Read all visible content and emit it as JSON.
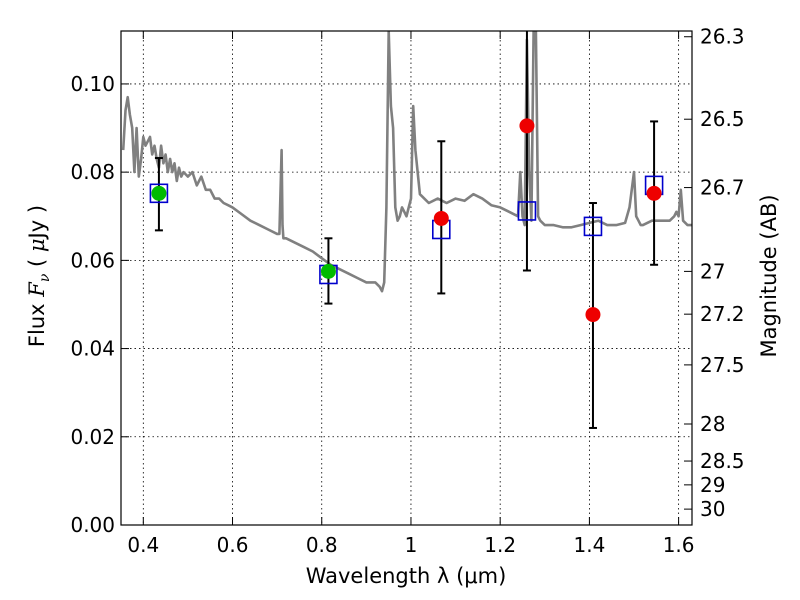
{
  "chart_data": {
    "type": "scatter",
    "xlabel": "Wavelength  λ (μm)",
    "ylabel_left_parts": [
      "Flux  ",
      "F",
      "ν",
      "  (  ",
      "μ",
      "Jy  )"
    ],
    "ylabel_right": "Magnitude (AB)",
    "xlim": [
      0.35,
      1.63
    ],
    "ylim": [
      0.0,
      0.112
    ],
    "x_ticks": [
      0.4,
      0.6,
      0.8,
      1.0,
      1.2,
      1.4,
      1.6
    ],
    "x_tick_labels": [
      "0.4",
      "0.6",
      "0.8",
      "1",
      "1.2",
      "1.4",
      "1.6"
    ],
    "y_ticks": [
      0.0,
      0.02,
      0.04,
      0.06,
      0.08,
      0.1
    ],
    "y_tick_labels": [
      "0.00",
      "0.02",
      "0.04",
      "0.06",
      "0.08",
      "0.10"
    ],
    "right_axis_ticks": [
      {
        "label": "26.3",
        "flux": 0.1107
      },
      {
        "label": "26.5",
        "flux": 0.092
      },
      {
        "label": "26.7",
        "flux": 0.0765
      },
      {
        "label": "27",
        "flux": 0.0575
      },
      {
        "label": "27.2",
        "flux": 0.0478
      },
      {
        "label": "27.5",
        "flux": 0.0363
      },
      {
        "label": "28",
        "flux": 0.0229
      },
      {
        "label": "28.5",
        "flux": 0.0145
      },
      {
        "label": "29",
        "flux": 0.0091
      },
      {
        "label": "30",
        "flux": 0.0036
      }
    ],
    "grid": true,
    "colors": {
      "model": "#808080",
      "green_points": "#00bb00",
      "red_points": "#ee0000",
      "model_photometry": "#0000cc",
      "errorbars": "#000000"
    },
    "model_spectrum": {
      "x": [
        0.355,
        0.36,
        0.365,
        0.37,
        0.375,
        0.38,
        0.385,
        0.39,
        0.395,
        0.4,
        0.405,
        0.41,
        0.415,
        0.42,
        0.425,
        0.43,
        0.435,
        0.44,
        0.445,
        0.45,
        0.455,
        0.46,
        0.465,
        0.47,
        0.475,
        0.48,
        0.485,
        0.49,
        0.5,
        0.51,
        0.52,
        0.53,
        0.54,
        0.55,
        0.56,
        0.57,
        0.58,
        0.59,
        0.6,
        0.62,
        0.64,
        0.66,
        0.68,
        0.7,
        0.705,
        0.71,
        0.712,
        0.714,
        0.716,
        0.72,
        0.74,
        0.76,
        0.78,
        0.8,
        0.82,
        0.84,
        0.86,
        0.88,
        0.9,
        0.92,
        0.93,
        0.935,
        0.94,
        0.945,
        0.95,
        0.955,
        0.96,
        0.965,
        0.97,
        0.975,
        0.98,
        0.985,
        0.99,
        0.995,
        1.0,
        1.005,
        1.01,
        1.02,
        1.03,
        1.04,
        1.06,
        1.08,
        1.1,
        1.12,
        1.14,
        1.16,
        1.18,
        1.2,
        1.22,
        1.24,
        1.245,
        1.25,
        1.255,
        1.26,
        1.265,
        1.27,
        1.275,
        1.28,
        1.285,
        1.29,
        1.3,
        1.32,
        1.34,
        1.36,
        1.38,
        1.4,
        1.42,
        1.44,
        1.46,
        1.48,
        1.49,
        1.5,
        1.505,
        1.51,
        1.515,
        1.52,
        1.54,
        1.56,
        1.58,
        1.59,
        1.595,
        1.6,
        1.605,
        1.61,
        1.62,
        1.63
      ],
      "y": [
        0.085,
        0.094,
        0.097,
        0.093,
        0.09,
        0.08,
        0.09,
        0.079,
        0.083,
        0.088,
        0.086,
        0.087,
        0.088,
        0.084,
        0.086,
        0.083,
        0.081,
        0.086,
        0.082,
        0.084,
        0.08,
        0.083,
        0.08,
        0.082,
        0.078,
        0.081,
        0.079,
        0.08,
        0.079,
        0.08,
        0.077,
        0.079,
        0.076,
        0.076,
        0.074,
        0.074,
        0.073,
        0.0725,
        0.072,
        0.0705,
        0.069,
        0.068,
        0.067,
        0.066,
        0.066,
        0.085,
        0.068,
        0.065,
        0.065,
        0.065,
        0.064,
        0.063,
        0.062,
        0.0605,
        0.059,
        0.058,
        0.057,
        0.056,
        0.055,
        0.055,
        0.054,
        0.053,
        0.055,
        0.072,
        0.112,
        0.095,
        0.09,
        0.072,
        0.069,
        0.07,
        0.072,
        0.071,
        0.07,
        0.072,
        0.074,
        0.095,
        0.085,
        0.075,
        0.074,
        0.073,
        0.074,
        0.073,
        0.074,
        0.0735,
        0.075,
        0.074,
        0.0725,
        0.072,
        0.071,
        0.07,
        0.08,
        0.07,
        0.068,
        0.11,
        0.08,
        0.069,
        0.112,
        0.112,
        0.07,
        0.069,
        0.068,
        0.068,
        0.0675,
        0.0675,
        0.068,
        0.0685,
        0.069,
        0.068,
        0.068,
        0.0685,
        0.072,
        0.08,
        0.07,
        0.069,
        0.068,
        0.068,
        0.069,
        0.069,
        0.069,
        0.07,
        0.071,
        0.07,
        0.076,
        0.069,
        0.068,
        0.068
      ]
    },
    "green_points": {
      "x": [
        0.435,
        0.815
      ],
      "y": [
        0.0752,
        0.0575
      ]
    },
    "red_points": {
      "x": [
        1.068,
        1.26,
        1.408,
        1.545
      ],
      "y": [
        0.0695,
        0.0905,
        0.0477,
        0.0752
      ]
    },
    "model_photometry": {
      "x": [
        0.435,
        0.815,
        1.068,
        1.26,
        1.408,
        1.545
      ],
      "y": [
        0.0752,
        0.0568,
        0.067,
        0.0712,
        0.0677,
        0.077
      ]
    },
    "errorbars": [
      {
        "x": 0.435,
        "low": 0.0668,
        "high": 0.0832
      },
      {
        "x": 0.815,
        "low": 0.0502,
        "high": 0.065
      },
      {
        "x": 1.068,
        "low": 0.0525,
        "high": 0.087
      },
      {
        "x": 1.26,
        "low": 0.0577,
        "high": 0.112
      },
      {
        "x": 1.408,
        "low": 0.022,
        "high": 0.073
      },
      {
        "x": 1.545,
        "low": 0.059,
        "high": 0.0915
      }
    ]
  }
}
